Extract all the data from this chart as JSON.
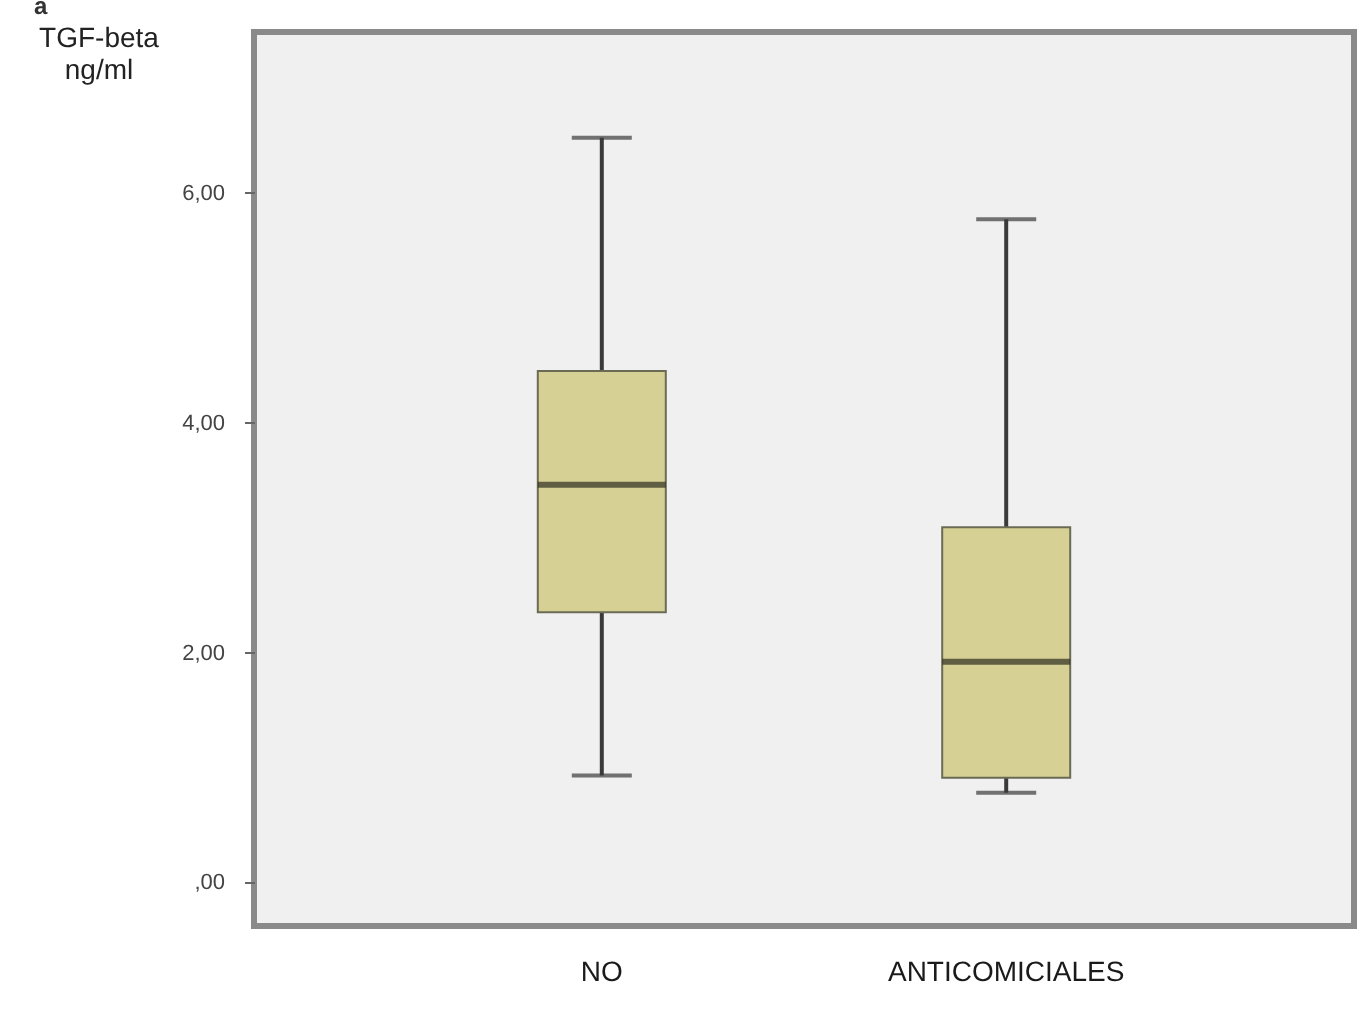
{
  "chart_data": {
    "type": "box",
    "title": "a",
    "ylabel": "TGF-beta ng/ml",
    "categories": [
      "NO",
      "ANTICOMICIALES"
    ],
    "boxes": [
      {
        "low": 0.93,
        "q1": 2.35,
        "median": 3.46,
        "q3": 4.45,
        "high": 6.48
      },
      {
        "low": 0.78,
        "q1": 0.91,
        "median": 1.92,
        "q3": 3.09,
        "high": 5.77
      }
    ],
    "color": "#d6d095",
    "ylim": [
      -0.38,
      7.4
    ],
    "yticks": [
      {
        "value": 0,
        "label": ",00"
      },
      {
        "value": 2,
        "label": "2,00"
      },
      {
        "value": 4,
        "label": "4,00"
      },
      {
        "value": 6,
        "label": "6,00"
      }
    ],
    "grid": false
  }
}
